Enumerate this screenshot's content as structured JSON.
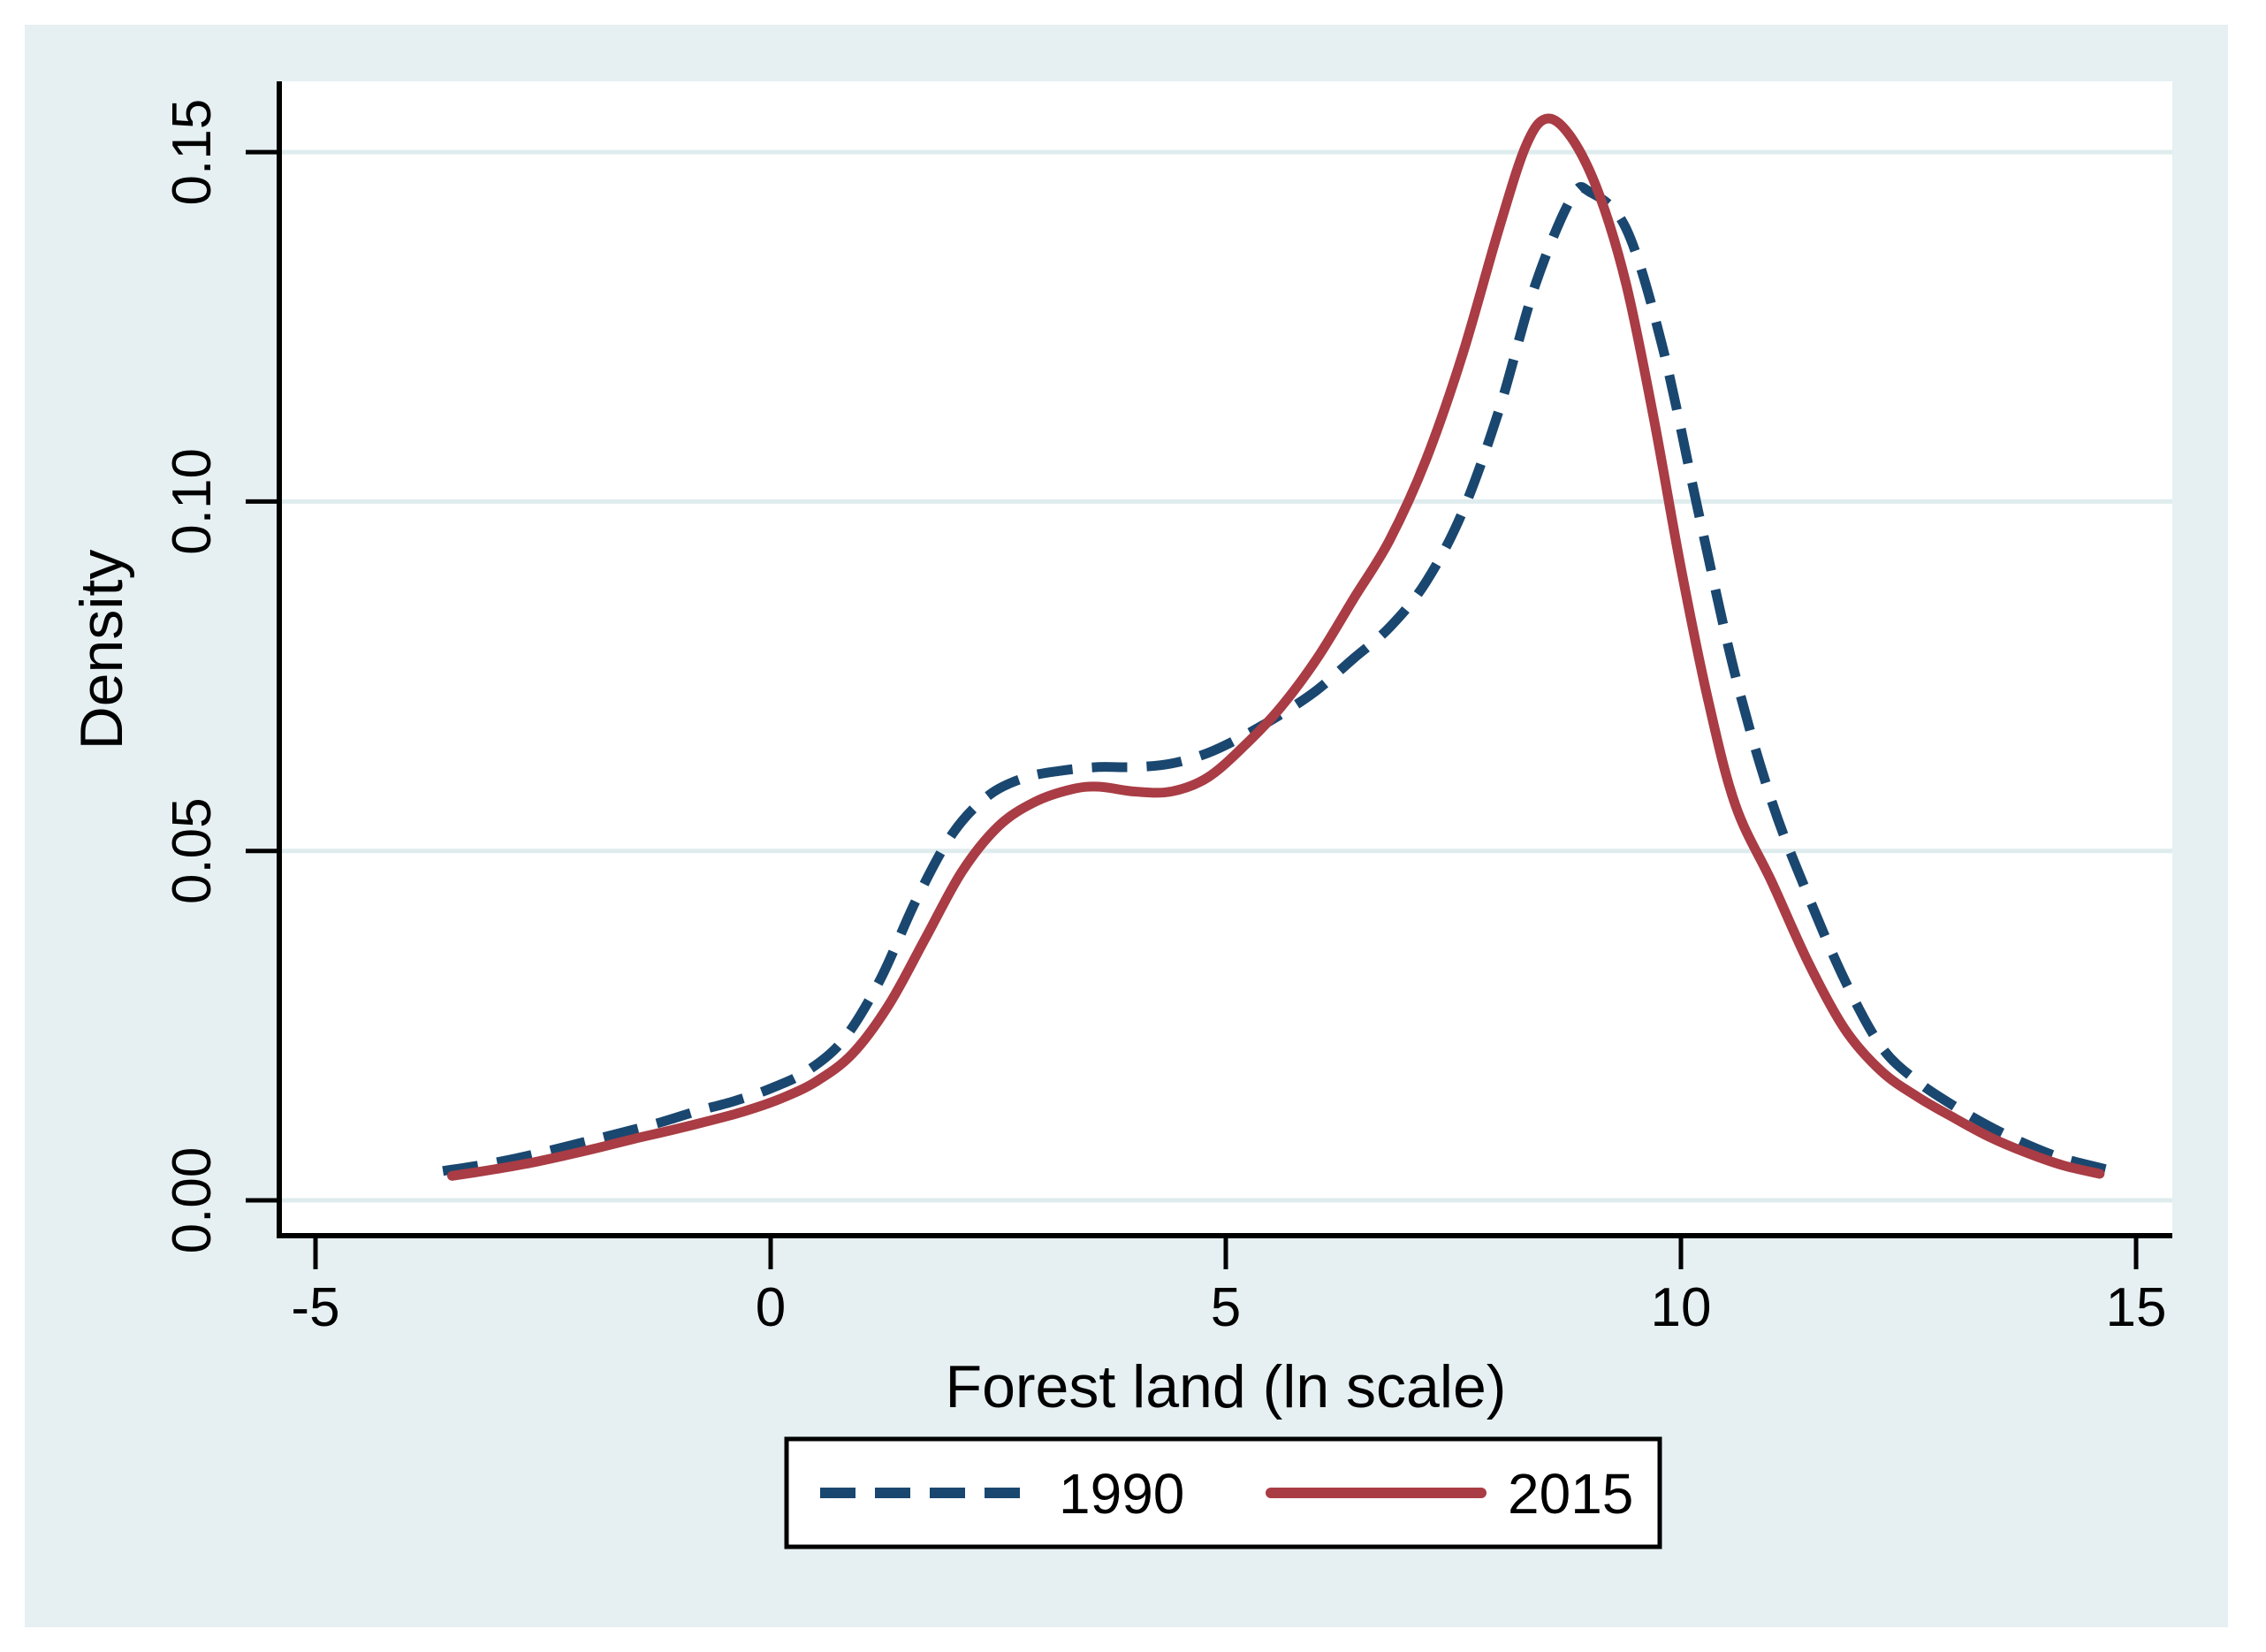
{
  "figure": {
    "background_color": "#e6f0f2",
    "plot_background_color": "#ffffff",
    "gridline_color": "#dfecee",
    "axis_color": "#000000"
  },
  "chart_data": {
    "type": "line",
    "title": "",
    "xlabel": "Forest land (ln scale)",
    "ylabel": "Density",
    "xlim": [
      -5.39,
      15.46
    ],
    "ylim": [
      -0.005,
      0.16
    ],
    "grid": "horizontal",
    "legend_position": "bottom-center",
    "x_ticks": {
      "values": [
        -5,
        0,
        5,
        10,
        15
      ],
      "labels": [
        "-5",
        "0",
        "5",
        "10",
        "15"
      ]
    },
    "y_ticks": {
      "values": [
        0.0,
        0.05,
        0.1,
        0.15
      ],
      "labels": [
        "0.00",
        "0.05",
        "0.10",
        "0.15"
      ]
    },
    "series": [
      {
        "name": "1990",
        "color": "#1a476f",
        "line_style": "dashed",
        "points": [
          [
            -3.6,
            0.0042
          ],
          [
            -3.2,
            0.005
          ],
          [
            -2.8,
            0.006
          ],
          [
            -2.4,
            0.0072
          ],
          [
            -2.0,
            0.0085
          ],
          [
            -1.6,
            0.0098
          ],
          [
            -1.2,
            0.0112
          ],
          [
            -0.8,
            0.0128
          ],
          [
            -0.4,
            0.0142
          ],
          [
            0.0,
            0.016
          ],
          [
            0.4,
            0.0185
          ],
          [
            0.8,
            0.023
          ],
          [
            1.2,
            0.0315
          ],
          [
            1.6,
            0.043
          ],
          [
            2.0,
            0.0525
          ],
          [
            2.4,
            0.058
          ],
          [
            2.8,
            0.0605
          ],
          [
            3.2,
            0.0615
          ],
          [
            3.6,
            0.062
          ],
          [
            4.0,
            0.062
          ],
          [
            4.4,
            0.0625
          ],
          [
            4.8,
            0.064
          ],
          [
            5.2,
            0.0665
          ],
          [
            5.6,
            0.0695
          ],
          [
            6.0,
            0.073
          ],
          [
            6.4,
            0.0775
          ],
          [
            6.8,
            0.082
          ],
          [
            7.2,
            0.0885
          ],
          [
            7.6,
            0.0985
          ],
          [
            8.0,
            0.113
          ],
          [
            8.4,
            0.131
          ],
          [
            8.8,
            0.1435
          ],
          [
            9.0,
            0.1443
          ],
          [
            9.4,
            0.139
          ],
          [
            9.8,
            0.122
          ],
          [
            10.2,
            0.098
          ],
          [
            10.6,
            0.075
          ],
          [
            11.0,
            0.057
          ],
          [
            11.4,
            0.0435
          ],
          [
            11.8,
            0.0315
          ],
          [
            12.2,
            0.022
          ],
          [
            12.6,
            0.017
          ],
          [
            13.0,
            0.0135
          ],
          [
            13.4,
            0.0105
          ],
          [
            13.8,
            0.008
          ],
          [
            14.2,
            0.006
          ],
          [
            14.75,
            0.0042
          ]
        ]
      },
      {
        "name": "2015",
        "color": "#a93c44",
        "line_style": "solid",
        "points": [
          [
            -3.5,
            0.0035
          ],
          [
            -3.1,
            0.0043
          ],
          [
            -2.7,
            0.0052
          ],
          [
            -2.3,
            0.0063
          ],
          [
            -1.9,
            0.0075
          ],
          [
            -1.5,
            0.0088
          ],
          [
            -1.1,
            0.01
          ],
          [
            -0.7,
            0.0113
          ],
          [
            -0.3,
            0.0127
          ],
          [
            0.1,
            0.0145
          ],
          [
            0.5,
            0.017
          ],
          [
            0.9,
            0.021
          ],
          [
            1.3,
            0.028
          ],
          [
            1.7,
            0.0375
          ],
          [
            2.1,
            0.047
          ],
          [
            2.5,
            0.0535
          ],
          [
            2.9,
            0.057
          ],
          [
            3.3,
            0.0588
          ],
          [
            3.6,
            0.0592
          ],
          [
            4.0,
            0.0585
          ],
          [
            4.4,
            0.0585
          ],
          [
            4.8,
            0.0605
          ],
          [
            5.2,
            0.065
          ],
          [
            5.6,
            0.0705
          ],
          [
            6.0,
            0.0775
          ],
          [
            6.4,
            0.086
          ],
          [
            6.8,
            0.0945
          ],
          [
            7.2,
            0.106
          ],
          [
            7.6,
            0.121
          ],
          [
            8.0,
            0.139
          ],
          [
            8.3,
            0.151
          ],
          [
            8.53,
            0.1548
          ],
          [
            8.8,
            0.152
          ],
          [
            9.1,
            0.144
          ],
          [
            9.4,
            0.131
          ],
          [
            9.7,
            0.112
          ],
          [
            10.0,
            0.0905
          ],
          [
            10.3,
            0.0715
          ],
          [
            10.6,
            0.0565
          ],
          [
            11.0,
            0.0455
          ],
          [
            11.4,
            0.034
          ],
          [
            11.8,
            0.0245
          ],
          [
            12.2,
            0.0185
          ],
          [
            12.6,
            0.0148
          ],
          [
            13.0,
            0.0118
          ],
          [
            13.4,
            0.009
          ],
          [
            13.8,
            0.0068
          ],
          [
            14.2,
            0.005
          ],
          [
            14.6,
            0.0038
          ]
        ]
      }
    ]
  },
  "legend": {
    "entries": [
      {
        "label": "1990",
        "color": "#1a476f",
        "line_style": "dashed"
      },
      {
        "label": "2015",
        "color": "#a93c44",
        "line_style": "solid"
      }
    ]
  }
}
